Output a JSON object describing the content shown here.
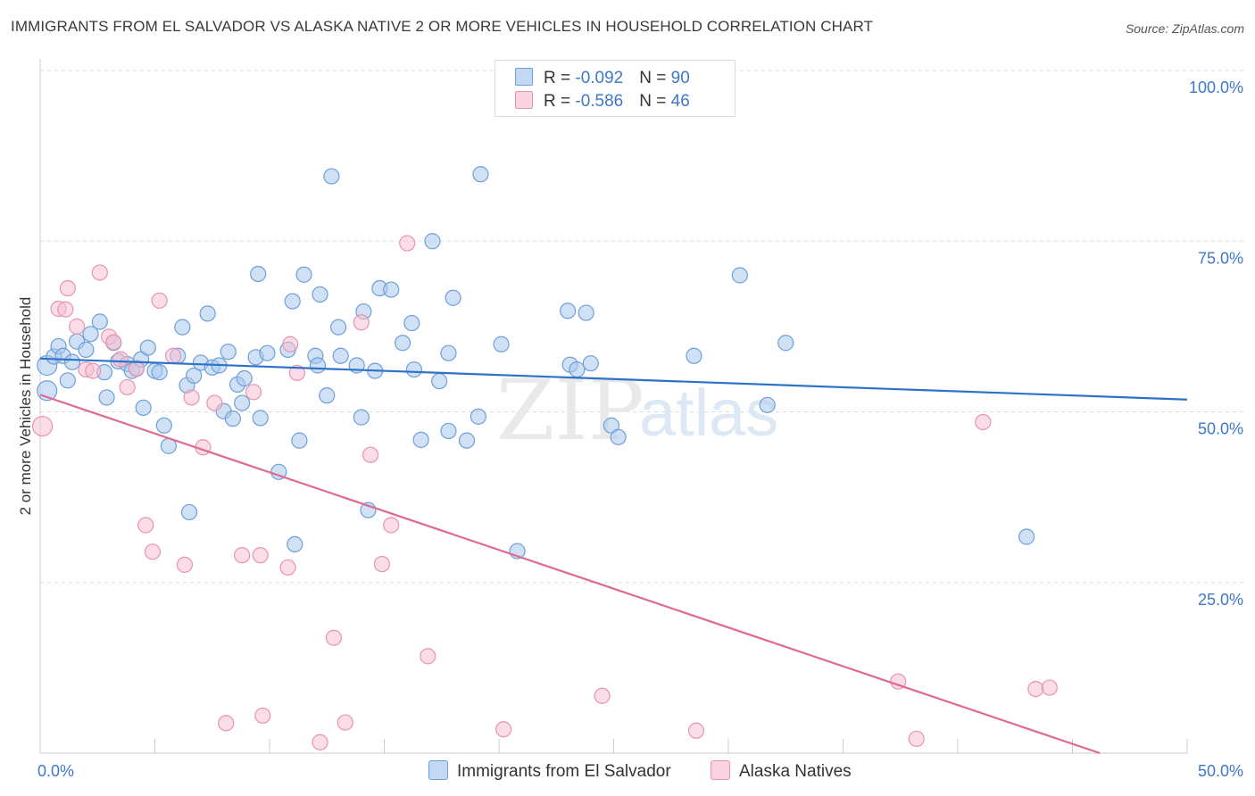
{
  "title": "IMMIGRANTS FROM EL SALVADOR VS ALASKA NATIVE 2 OR MORE VEHICLES IN HOUSEHOLD CORRELATION CHART",
  "source": "Source: ZipAtlas.com",
  "watermark": {
    "zip": "ZIP",
    "atlas": "atlas"
  },
  "colors": {
    "blue_fill": "#aac8ef",
    "blue_stroke": "#6d9fd8",
    "blue_line": "#2d72c8",
    "pink_fill": "#f5c1d2",
    "pink_stroke": "#e993b1",
    "pink_line": "#e0698f",
    "tick_label": "#3d78c9",
    "grid": "#dddddd"
  },
  "legend_top": [
    {
      "r_label": "R = ",
      "r_value": "-0.092",
      "n_label": "N = ",
      "n_value": "90",
      "color": "blue"
    },
    {
      "r_label": "R = ",
      "r_value": "-0.586",
      "n_label": "N = ",
      "n_value": "46",
      "color": "pink"
    }
  ],
  "legend_bottom": [
    {
      "label": "Immigrants from El Salvador",
      "color": "blue"
    },
    {
      "label": "Alaska Natives",
      "color": "pink"
    }
  ],
  "chart_data": {
    "type": "scatter",
    "title": "IMMIGRANTS FROM EL SALVADOR VS ALASKA NATIVE 2 OR MORE VEHICLES IN HOUSEHOLD CORRELATION CHART",
    "xlabel": "",
    "ylabel": "2 or more Vehicles in Household",
    "xlim": [
      0,
      50
    ],
    "ylim": [
      0,
      100
    ],
    "x_tick_labels": [
      {
        "value": 0,
        "label": "0.0%"
      },
      {
        "value": 50,
        "label": "50.0%"
      }
    ],
    "y_tick_labels": [
      {
        "value": 100,
        "label": "100.0%"
      },
      {
        "value": 75,
        "label": "75.0%"
      },
      {
        "value": 50,
        "label": "50.0%"
      },
      {
        "value": 25,
        "label": "25.0%"
      }
    ],
    "grid": true,
    "legend_position": "bottom",
    "series": [
      {
        "name": "Immigrants from El Salvador",
        "color": "blue",
        "trend": {
          "x": [
            0,
            50
          ],
          "y": [
            57.8,
            51.8
          ]
        },
        "points": [
          [
            0.3,
            56.8
          ],
          [
            0.3,
            53.1
          ],
          [
            0.6,
            58.1
          ],
          [
            0.8,
            59.6
          ],
          [
            1.0,
            58.2
          ],
          [
            1.2,
            54.6
          ],
          [
            1.4,
            57.3
          ],
          [
            1.6,
            60.3
          ],
          [
            2.0,
            59.1
          ],
          [
            2.2,
            61.4
          ],
          [
            2.6,
            63.2
          ],
          [
            2.8,
            55.8
          ],
          [
            2.9,
            52.1
          ],
          [
            3.2,
            60.1
          ],
          [
            3.4,
            57.4
          ],
          [
            3.8,
            57.0
          ],
          [
            4.0,
            56.0
          ],
          [
            4.2,
            56.4
          ],
          [
            4.4,
            57.7
          ],
          [
            4.5,
            50.6
          ],
          [
            4.7,
            59.4
          ],
          [
            5.0,
            56.0
          ],
          [
            5.2,
            55.8
          ],
          [
            5.4,
            48.0
          ],
          [
            5.6,
            45.0
          ],
          [
            6.0,
            58.2
          ],
          [
            6.2,
            62.4
          ],
          [
            6.4,
            53.9
          ],
          [
            6.5,
            35.3
          ],
          [
            6.7,
            55.3
          ],
          [
            7.0,
            57.2
          ],
          [
            7.3,
            64.4
          ],
          [
            7.5,
            56.5
          ],
          [
            7.8,
            56.8
          ],
          [
            8.0,
            50.1
          ],
          [
            8.2,
            58.8
          ],
          [
            8.4,
            49.0
          ],
          [
            8.6,
            54.0
          ],
          [
            8.8,
            51.3
          ],
          [
            8.9,
            54.9
          ],
          [
            9.4,
            58.0
          ],
          [
            9.5,
            70.2
          ],
          [
            9.6,
            49.1
          ],
          [
            9.9,
            58.6
          ],
          [
            10.4,
            41.2
          ],
          [
            10.8,
            59.1
          ],
          [
            11.0,
            66.2
          ],
          [
            11.1,
            30.6
          ],
          [
            11.3,
            45.8
          ],
          [
            11.5,
            70.1
          ],
          [
            12.0,
            58.2
          ],
          [
            12.1,
            56.8
          ],
          [
            12.2,
            67.2
          ],
          [
            12.5,
            52.4
          ],
          [
            12.7,
            84.5
          ],
          [
            13.0,
            62.4
          ],
          [
            13.1,
            58.2
          ],
          [
            13.8,
            56.8
          ],
          [
            14.0,
            49.2
          ],
          [
            14.1,
            64.7
          ],
          [
            14.3,
            35.6
          ],
          [
            14.6,
            56.0
          ],
          [
            14.8,
            68.1
          ],
          [
            15.3,
            67.9
          ],
          [
            15.8,
            60.1
          ],
          [
            16.2,
            63.0
          ],
          [
            16.3,
            56.2
          ],
          [
            16.6,
            45.9
          ],
          [
            17.1,
            75.0
          ],
          [
            17.4,
            54.5
          ],
          [
            17.8,
            47.2
          ],
          [
            17.8,
            58.6
          ],
          [
            18.0,
            66.7
          ],
          [
            18.6,
            45.8
          ],
          [
            19.1,
            49.3
          ],
          [
            19.2,
            84.8
          ],
          [
            20.1,
            59.9
          ],
          [
            20.8,
            29.6
          ],
          [
            23.0,
            64.8
          ],
          [
            23.1,
            56.9
          ],
          [
            23.4,
            56.2
          ],
          [
            23.8,
            64.5
          ],
          [
            24.0,
            57.1
          ],
          [
            24.9,
            48.0
          ],
          [
            25.2,
            46.3
          ],
          [
            28.5,
            58.2
          ],
          [
            30.5,
            70.0
          ],
          [
            31.7,
            51.0
          ],
          [
            32.5,
            60.1
          ],
          [
            43.0,
            31.7
          ]
        ]
      },
      {
        "name": "Alaska Natives",
        "color": "pink",
        "trend": {
          "x": [
            0,
            46.2
          ],
          "y": [
            52.5,
            0
          ]
        },
        "points": [
          [
            0.1,
            47.9
          ],
          [
            0.8,
            65.1
          ],
          [
            1.1,
            65.0
          ],
          [
            1.2,
            68.1
          ],
          [
            1.6,
            62.5
          ],
          [
            2.0,
            56.2
          ],
          [
            2.3,
            56.0
          ],
          [
            2.6,
            70.4
          ],
          [
            3.0,
            61.0
          ],
          [
            3.2,
            60.2
          ],
          [
            3.5,
            57.7
          ],
          [
            3.8,
            53.6
          ],
          [
            4.2,
            56.3
          ],
          [
            4.6,
            33.4
          ],
          [
            4.9,
            29.5
          ],
          [
            5.2,
            66.3
          ],
          [
            5.8,
            58.2
          ],
          [
            6.3,
            27.6
          ],
          [
            6.6,
            52.1
          ],
          [
            7.1,
            44.8
          ],
          [
            7.6,
            51.3
          ],
          [
            8.1,
            4.4
          ],
          [
            8.8,
            29.0
          ],
          [
            9.3,
            52.9
          ],
          [
            9.6,
            29.0
          ],
          [
            9.7,
            5.5
          ],
          [
            10.8,
            27.2
          ],
          [
            10.9,
            59.9
          ],
          [
            11.2,
            55.7
          ],
          [
            12.2,
            1.6
          ],
          [
            12.8,
            16.9
          ],
          [
            13.3,
            4.5
          ],
          [
            14.0,
            63.1
          ],
          [
            14.4,
            43.7
          ],
          [
            14.9,
            27.7
          ],
          [
            15.3,
            33.4
          ],
          [
            16.0,
            74.7
          ],
          [
            16.9,
            14.2
          ],
          [
            20.2,
            3.5
          ],
          [
            24.5,
            8.4
          ],
          [
            28.6,
            3.3
          ],
          [
            37.4,
            10.5
          ],
          [
            38.2,
            2.1
          ],
          [
            41.1,
            48.5
          ],
          [
            43.4,
            9.4
          ],
          [
            44.0,
            9.6
          ]
        ]
      }
    ]
  }
}
